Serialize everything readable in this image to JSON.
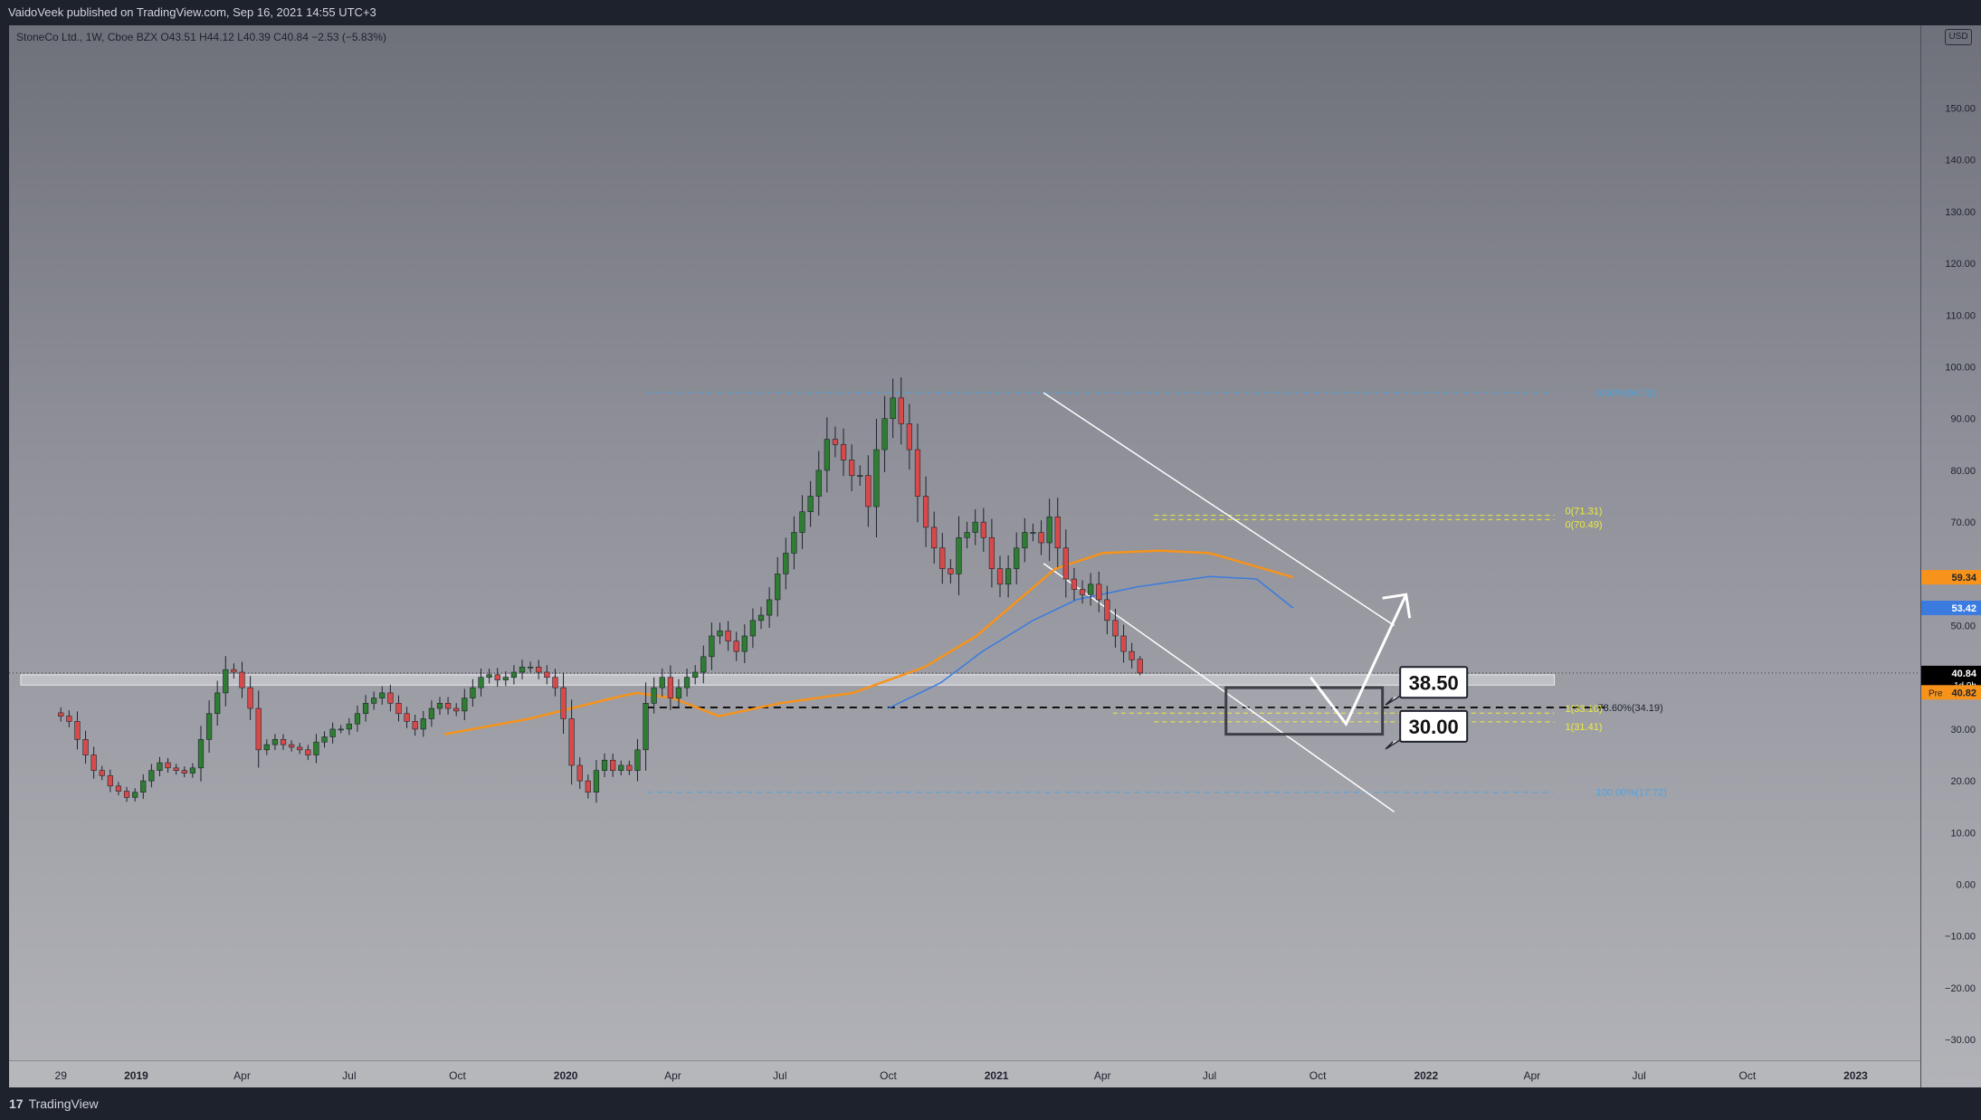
{
  "header": {
    "published": "VaidoVeek published on TradingView.com, Sep 16, 2021 14:55 UTC+3"
  },
  "footer": {
    "brand": "TradingView",
    "logo_glyph": "17"
  },
  "legend": {
    "text": "StoneCo Ltd., 1W, Cboe BZX  O43.51  H44.12  L40.39  C40.84  −2.53 (−5.83%)"
  },
  "currency": "USD",
  "colors": {
    "up": "#26a69a",
    "up_fill": "#2e7d32",
    "down": "#d84a4a",
    "ema_orange": "#f7931a",
    "ma_blue": "#3b7be0",
    "fib_blue": "#4da3e0",
    "fib_yellow": "#ecec3a"
  },
  "chart_data": {
    "type": "candlestick",
    "interval": "1W",
    "ylim": [
      -34,
      166
    ],
    "x_range": [
      "2018-09-15",
      "2023-02-25"
    ],
    "y_ticks": [
      150,
      140,
      130,
      120,
      110,
      100,
      90,
      80,
      70,
      60,
      50,
      40,
      30,
      20,
      10,
      0,
      -10,
      -20,
      -30
    ],
    "y_tick_labels": [
      "150.00",
      "140.00",
      "130.00",
      "120.00",
      "110.00",
      "100.00",
      "90.00",
      "80.00",
      "70.00",
      "60.00",
      "50.00",
      "40.00",
      "30.00",
      "20.00",
      "10.00",
      "0.00",
      "−10.00",
      "−20.00",
      "−30.00"
    ],
    "x_ticks": [
      {
        "date": "2018-10-29",
        "label": "29"
      },
      {
        "date": "2019-01-01",
        "label": "2019"
      },
      {
        "date": "2019-04-01",
        "label": "Apr"
      },
      {
        "date": "2019-07-01",
        "label": "Jul"
      },
      {
        "date": "2019-10-01",
        "label": "Oct"
      },
      {
        "date": "2020-01-01",
        "label": "2020"
      },
      {
        "date": "2020-04-01",
        "label": "Apr"
      },
      {
        "date": "2020-07-01",
        "label": "Jul"
      },
      {
        "date": "2020-10-01",
        "label": "Oct"
      },
      {
        "date": "2021-01-01",
        "label": "2021"
      },
      {
        "date": "2021-04-01",
        "label": "Apr"
      },
      {
        "date": "2021-07-01",
        "label": "Jul"
      },
      {
        "date": "2021-10-01",
        "label": "Oct"
      },
      {
        "date": "2022-01-01",
        "label": "2022"
      },
      {
        "date": "2022-04-01",
        "label": "Apr"
      },
      {
        "date": "2022-07-01",
        "label": "Jul"
      },
      {
        "date": "2022-10-01",
        "label": "Oct"
      },
      {
        "date": "2023-01-01",
        "label": "2023"
      }
    ],
    "candles_start": "2018-10-29",
    "close_path": [
      32.5,
      31.5,
      28,
      25,
      22,
      21,
      19,
      18,
      16.8,
      17.8,
      20,
      22,
      23.5,
      22.5,
      22,
      21.5,
      22.5,
      28,
      33,
      37,
      41.5,
      41,
      38,
      34,
      26,
      27,
      28,
      27,
      26.5,
      26,
      25,
      27.5,
      28.5,
      30,
      30,
      31,
      33,
      35,
      36,
      37,
      35,
      33,
      31.5,
      30,
      32,
      34,
      35,
      34,
      33.5,
      36,
      38,
      40,
      40.5,
      39.5,
      40,
      41,
      42,
      42,
      41,
      40,
      38,
      32,
      23,
      20,
      17.8,
      22,
      24,
      22,
      23,
      22,
      26,
      35,
      38,
      40,
      36,
      38,
      40,
      41,
      44,
      48,
      49,
      47,
      45,
      48,
      51,
      52,
      55,
      60,
      64,
      68,
      72,
      75,
      80,
      86,
      85,
      82,
      79,
      79,
      73,
      84,
      90,
      94,
      89,
      84,
      75,
      69,
      65,
      61,
      60,
      67,
      68,
      70,
      67,
      61,
      58,
      61,
      65,
      68,
      68,
      66,
      71,
      65,
      59,
      57,
      56,
      58,
      55,
      51,
      48,
      45,
      43.37,
      40.84
    ],
    "close_path_note": "",
    "last_candle": {
      "open": 43.51,
      "high": 44.12,
      "low": 40.39,
      "close": 40.84
    },
    "moving_averages": [
      {
        "id": "ema",
        "color": "#f7931a",
        "points": [
          [
            "2019-09-20",
            29
          ],
          [
            "2019-12-01",
            32
          ],
          [
            "2020-02-10",
            36
          ],
          [
            "2020-03-01",
            37
          ],
          [
            "2020-04-01",
            36
          ],
          [
            "2020-05-10",
            32.5
          ],
          [
            "2020-07-01",
            35
          ],
          [
            "2020-09-01",
            37
          ],
          [
            "2020-11-01",
            42
          ],
          [
            "2020-12-15",
            48
          ],
          [
            "2021-01-20",
            55
          ],
          [
            "2021-02-20",
            61
          ],
          [
            "2021-04-01",
            64
          ],
          [
            "2021-05-20",
            64.5
          ],
          [
            "2021-07-01",
            64
          ],
          [
            "2021-08-01",
            62
          ],
          [
            "2021-09-10",
            59.34
          ]
        ]
      },
      {
        "id": "sma",
        "color": "#3b7be0",
        "points": [
          [
            "2020-10-01",
            34
          ],
          [
            "2020-11-15",
            39
          ],
          [
            "2020-12-20",
            45
          ],
          [
            "2021-02-01",
            51
          ],
          [
            "2021-03-10",
            55
          ],
          [
            "2021-05-01",
            57.5
          ],
          [
            "2021-07-01",
            59.5
          ],
          [
            "2021-08-10",
            59
          ],
          [
            "2021-09-10",
            53.42
          ]
        ]
      }
    ],
    "zone": {
      "from": "2018-09-25",
      "to": "2022-04-20",
      "low": 38.5,
      "high": 40.5
    },
    "fib_blue": [
      {
        "price": 95,
        "label": "0.00%(94.72)",
        "from": "2020-03-10",
        "to": "2022-04-20"
      },
      {
        "price": 17.8,
        "label": "100.00%(17.72)",
        "from": "2020-03-10",
        "to": "2022-04-20"
      }
    ],
    "fib_dashed_black": {
      "price": 34.19,
      "label": "78.60%(34.19)",
      "from": "2020-03-10",
      "to": "2022-04-20"
    },
    "fib_yellow": [
      {
        "price": 71.31,
        "label": "0(71.31)",
        "from": "2021-05-15",
        "to": "2022-04-20"
      },
      {
        "price": 70.49,
        "label": "0(70.49)",
        "from": "2021-05-15",
        "to": "2022-04-20"
      },
      {
        "price": 33.1,
        "label": "1(33.10)",
        "from": "2021-04-10",
        "to": "2022-04-20"
      },
      {
        "price": 31.41,
        "label": "1(31.41)",
        "from": "2021-05-15",
        "to": "2022-04-20"
      }
    ],
    "channel": [
      {
        "from": [
          "2021-02-10",
          95
        ],
        "to": [
          "2021-12-05",
          50
        ]
      },
      {
        "from": [
          "2021-02-10",
          62
        ],
        "to": [
          "2021-12-05",
          14
        ]
      }
    ],
    "target_box": {
      "from": "2021-07-15",
      "to": "2021-11-25",
      "low": 29,
      "high": 38
    },
    "arrow_path": [
      [
        "2021-09-25",
        40
      ],
      [
        "2021-10-25",
        31
      ],
      [
        "2021-12-15",
        56
      ]
    ],
    "callouts": [
      {
        "text": "38.50",
        "price": 38.5,
        "date": "2021-12-10"
      },
      {
        "text": "30.00",
        "price": 30.0,
        "date": "2021-12-10"
      }
    ],
    "price_labels": [
      {
        "text": "59.34",
        "price": 59.34,
        "bg": "#f7931a",
        "color": "#1e222d",
        "prefix": ""
      },
      {
        "text": "53.42",
        "price": 53.42,
        "bg": "#3b7be0",
        "color": "#ffffff",
        "prefix": ""
      },
      {
        "text": "40.84",
        "price": 40.84,
        "bg": "#000000",
        "color": "#ffffff",
        "prefix": "",
        "sub": "1d 9h"
      },
      {
        "text": "40.82",
        "price": 37.1,
        "bg": "#f7931a",
        "color": "#1e222d",
        "prefix": "Pre"
      }
    ]
  }
}
